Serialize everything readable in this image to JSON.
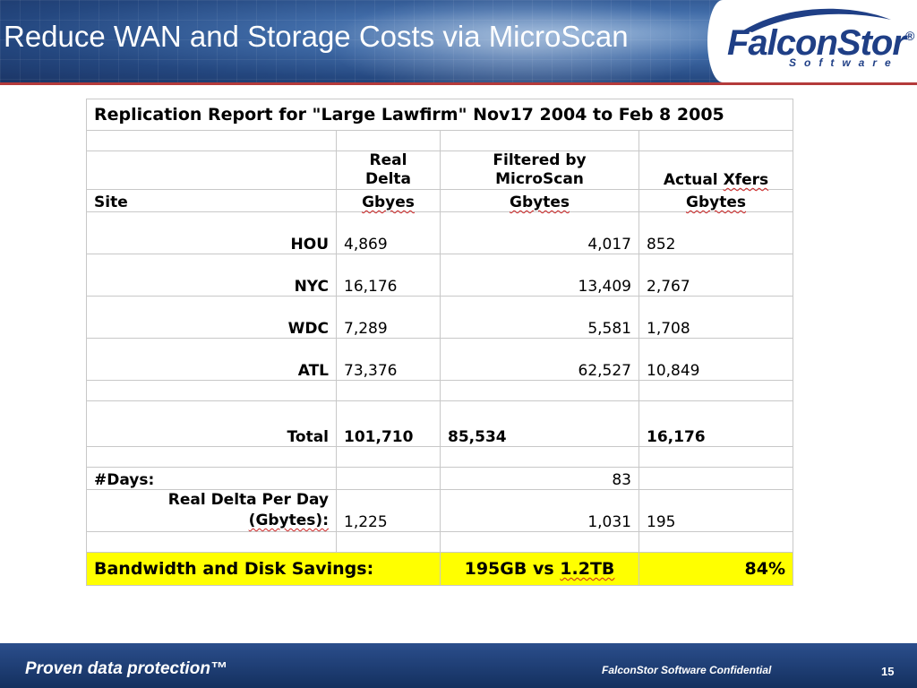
{
  "slide": {
    "title": "Reduce WAN and Storage Costs via MicroScan",
    "logo": {
      "name": "FalconStor",
      "registered": "®",
      "sub": "Software"
    },
    "colors": {
      "header_blue": "#24477f",
      "logo_blue": "#1f3f86",
      "highlight_yellow": "#ffff00",
      "rule_red": "#b43a3a"
    }
  },
  "table": {
    "title": "Replication Report for \"Large Lawfirm\" Nov17 2004 to Feb 8 2005",
    "headers": {
      "site": "Site",
      "real_delta_line1": "Real",
      "real_delta_line2": "Delta",
      "real_delta_unit": "Gbyes",
      "filtered_line1": "Filtered by",
      "filtered_line2": "MicroScan",
      "filtered_unit": "Gbytes",
      "actual_line1": "Actual Xfers",
      "actual_unit": "Gbytes"
    },
    "rows": [
      {
        "site": "HOU",
        "real": "4,869",
        "filtered": "4,017",
        "actual": "852"
      },
      {
        "site": "NYC",
        "real": "16,176",
        "filtered": "13,409",
        "actual": "2,767"
      },
      {
        "site": "WDC",
        "real": "7,289",
        "filtered": "5,581",
        "actual": "1,708"
      },
      {
        "site": "ATL",
        "real": "73,376",
        "filtered": "62,527",
        "actual": "10,849"
      }
    ],
    "total": {
      "label": "Total",
      "real": "101,710",
      "filtered": "85,534",
      "actual": "16,176"
    },
    "days": {
      "label": "#Days:",
      "value": "83"
    },
    "per_day": {
      "label_line1": "Real Delta Per Day",
      "label_line2": "(Gbytes):",
      "real": "1,225",
      "filtered": "1,031",
      "actual": "195"
    },
    "savings": {
      "label": "Bandwidth and Disk Savings:",
      "compare": "195GB vs 1.2TB",
      "percent": "84%"
    }
  },
  "footer": {
    "tagline": "Proven data protection™",
    "confidential": "FalconStor Software Confidential",
    "page": "15"
  }
}
